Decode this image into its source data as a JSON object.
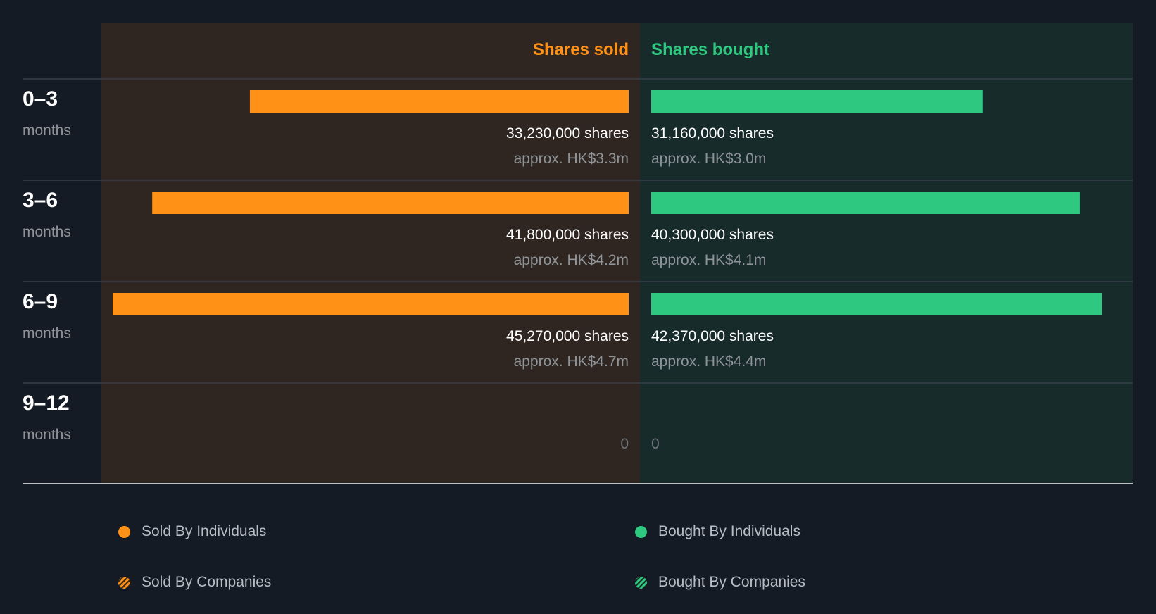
{
  "colors": {
    "background": "#151b24",
    "sold_panel": "#302621",
    "bought_panel": "#172b2b",
    "sold": "#ff9216",
    "bought": "#2ec880",
    "muted_text": "#8f9499",
    "zero_text": "#6d7378",
    "divider": "#38404a",
    "axis": "#bcc1c6"
  },
  "chart_data": {
    "type": "bar",
    "orientation": "horizontal-diverging",
    "header_left": "Shares sold",
    "header_right": "Shares bought",
    "categories": [
      {
        "range": "0–3",
        "unit": "months"
      },
      {
        "range": "3–6",
        "unit": "months"
      },
      {
        "range": "6–9",
        "unit": "months"
      },
      {
        "range": "9–12",
        "unit": "months"
      }
    ],
    "series": [
      {
        "name": "Sold By Individuals",
        "side": "left",
        "values": [
          33230000,
          41800000,
          45270000,
          0
        ],
        "share_labels": [
          "33,230,000 shares",
          "41,800,000 shares",
          "45,270,000 shares",
          "0"
        ],
        "value_labels": [
          "approx. HK$3.3m",
          "approx. HK$4.2m",
          "approx. HK$4.7m",
          ""
        ]
      },
      {
        "name": "Bought By Individuals",
        "side": "right",
        "values": [
          31160000,
          40300000,
          42370000,
          0
        ],
        "share_labels": [
          "31,160,000 shares",
          "40,300,000 shares",
          "42,370,000 shares",
          "0"
        ],
        "value_labels": [
          "approx. HK$3.0m",
          "approx. HK$4.1m",
          "approx. HK$4.4m",
          ""
        ]
      }
    ],
    "legend": [
      {
        "label": "Sold By Individuals",
        "color": "#ff9216",
        "pattern": "solid"
      },
      {
        "label": "Bought By Individuals",
        "color": "#2ec880",
        "pattern": "solid"
      },
      {
        "label": "Sold By Companies",
        "color": "#ff9216",
        "pattern": "striped"
      },
      {
        "label": "Bought By Companies",
        "color": "#2ec880",
        "pattern": "striped"
      }
    ],
    "legend_placement": "bottom"
  }
}
